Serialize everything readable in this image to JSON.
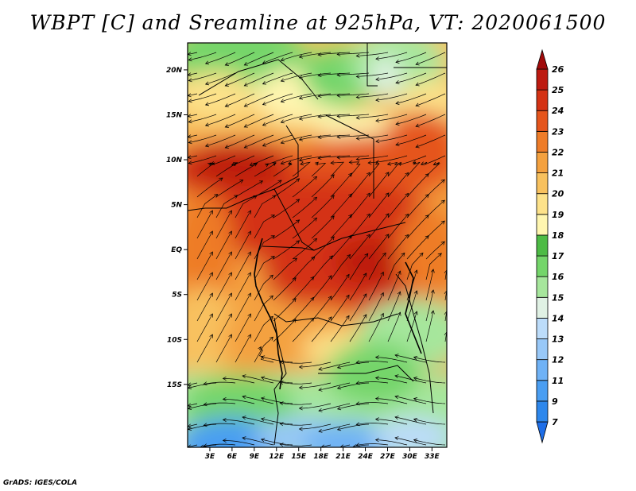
{
  "title": "WBPT [C] and Sreamline at 925hPa, VT: 2020061500",
  "credit": "GrADS: IGES/COLA",
  "chart_data": {
    "type": "heatmap",
    "variable": "WBPT",
    "units": "C",
    "overlay": "streamlines",
    "level": "925hPa",
    "valid_time": "2020061500",
    "x_range": [
      0,
      35
    ],
    "y_range": [
      -22,
      23
    ],
    "x_ticks": [
      {
        "value": 3,
        "label": "3E"
      },
      {
        "value": 6,
        "label": "6E"
      },
      {
        "value": 9,
        "label": "9E"
      },
      {
        "value": 12,
        "label": "12E"
      },
      {
        "value": 15,
        "label": "15E"
      },
      {
        "value": 18,
        "label": "18E"
      },
      {
        "value": 21,
        "label": "21E"
      },
      {
        "value": 24,
        "label": "24E"
      },
      {
        "value": 27,
        "label": "27E"
      },
      {
        "value": 30,
        "label": "30E"
      },
      {
        "value": 33,
        "label": "33E"
      }
    ],
    "y_ticks": [
      {
        "value": 20,
        "label": "20N"
      },
      {
        "value": 15,
        "label": "15N"
      },
      {
        "value": 10,
        "label": "10N"
      },
      {
        "value": 5,
        "label": "5N"
      },
      {
        "value": 0,
        "label": "EQ"
      },
      {
        "value": -5,
        "label": "5S"
      },
      {
        "value": -10,
        "label": "10S"
      },
      {
        "value": -15,
        "label": "15S"
      }
    ],
    "colorbar": {
      "levels": [
        "7",
        "9",
        "11",
        "12",
        "13",
        "14",
        "15",
        "16",
        "17",
        "18",
        "19",
        "20",
        "21",
        "22",
        "23",
        "24",
        "25",
        "26"
      ],
      "colors": [
        "#1e6ee8",
        "#2d87ec",
        "#4a9ef2",
        "#6fb2f6",
        "#98c8f8",
        "#bcdcfa",
        "#e0f1e4",
        "#a6e69c",
        "#74d56a",
        "#4dbb45",
        "#fff6b0",
        "#fde28a",
        "#f8c15e",
        "#f4a13f",
        "#ee7c28",
        "#e5551c",
        "#d43214",
        "#bd1a10",
        "#a00a0a"
      ]
    }
  }
}
